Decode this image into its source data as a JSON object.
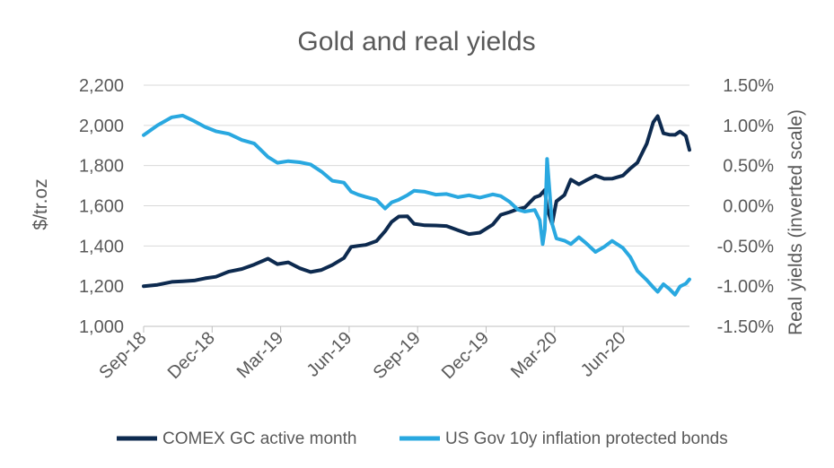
{
  "chart_data": {
    "type": "line",
    "title": "Gold and real yields",
    "ylabel": "$/tr.oz",
    "y2label": "Real yields (inverted scale)",
    "ylim": [
      1000,
      2200
    ],
    "y2lim": [
      1.5,
      -1.5
    ],
    "y2_inverted": true,
    "x_ticks": [
      "Sep-18",
      "Dec-18",
      "Mar-19",
      "Jun-19",
      "Sep-19",
      "Dec-19",
      "Mar-20",
      "Jun-20"
    ],
    "y_ticks": [
      "1,000",
      "1,200",
      "1,400",
      "1,600",
      "1,800",
      "2,000",
      "2,200"
    ],
    "y2_ticks": [
      "1.50%",
      "1.00%",
      "0.50%",
      "0.00%",
      "-0.50%",
      "-1.00%",
      "-1.50%"
    ],
    "grid": "horizontal",
    "legend_position": "bottom",
    "colors": {
      "gold": "#0d2a4f",
      "yields": "#29a8e0",
      "text": "#595959",
      "grid": "#d9d9d9"
    },
    "series": [
      {
        "name": "COMEX GC active month",
        "axis": "left",
        "x": [
          "2018-09-01",
          "2018-09-20",
          "2018-10-10",
          "2018-10-25",
          "2018-11-10",
          "2018-11-25",
          "2018-12-10",
          "2018-12-28",
          "2019-01-15",
          "2019-02-01",
          "2019-02-20",
          "2019-03-05",
          "2019-03-20",
          "2019-04-05",
          "2019-04-20",
          "2019-05-05",
          "2019-05-20",
          "2019-06-05",
          "2019-06-15",
          "2019-06-25",
          "2019-07-05",
          "2019-07-20",
          "2019-08-01",
          "2019-08-10",
          "2019-08-20",
          "2019-09-01",
          "2019-09-10",
          "2019-09-25",
          "2019-10-10",
          "2019-10-25",
          "2019-11-10",
          "2019-11-25",
          "2019-12-10",
          "2019-12-28",
          "2020-01-08",
          "2020-01-20",
          "2020-02-01",
          "2020-02-10",
          "2020-02-24",
          "2020-03-02",
          "2020-03-09",
          "2020-03-12",
          "2020-03-19",
          "2020-03-25",
          "2020-04-05",
          "2020-04-14",
          "2020-04-25",
          "2020-05-05",
          "2020-05-18",
          "2020-05-30",
          "2020-06-10",
          "2020-06-25",
          "2020-07-05",
          "2020-07-15",
          "2020-07-28",
          "2020-08-06",
          "2020-08-12",
          "2020-08-20",
          "2020-08-28",
          "2020-09-05",
          "2020-09-12",
          "2020-09-20",
          "2020-09-25"
        ],
        "values": [
          1200,
          1215,
          1230,
          1225,
          1220,
          1230,
          1245,
          1280,
          1295,
          1310,
          1330,
          1300,
          1315,
          1295,
          1280,
          1285,
          1300,
          1330,
          1390,
          1405,
          1415,
          1430,
          1470,
          1510,
          1540,
          1550,
          1520,
          1510,
          1500,
          1490,
          1470,
          1460,
          1475,
          1515,
          1555,
          1560,
          1575,
          1590,
          1650,
          1660,
          1680,
          1580,
          1500,
          1620,
          1660,
          1740,
          1710,
          1720,
          1740,
          1730,
          1740,
          1760,
          1790,
          1810,
          1900,
          2010,
          2050,
          1970,
          1960,
          1950,
          1960,
          1940,
          1880
        ]
      },
      {
        "name": "US Gov 10y inflation protected bonds",
        "axis": "right",
        "x": [
          "2018-09-01",
          "2018-09-20",
          "2018-10-10",
          "2018-10-25",
          "2018-11-10",
          "2018-11-25",
          "2018-12-10",
          "2018-12-28",
          "2019-01-15",
          "2019-02-01",
          "2019-02-20",
          "2019-03-05",
          "2019-03-20",
          "2019-04-05",
          "2019-04-20",
          "2019-05-05",
          "2019-05-20",
          "2019-06-05",
          "2019-06-15",
          "2019-06-25",
          "2019-07-05",
          "2019-07-20",
          "2019-08-01",
          "2019-08-10",
          "2019-08-20",
          "2019-09-01",
          "2019-09-10",
          "2019-09-25",
          "2019-10-10",
          "2019-10-25",
          "2019-11-10",
          "2019-11-25",
          "2019-12-10",
          "2019-12-28",
          "2020-01-08",
          "2020-01-20",
          "2020-02-01",
          "2020-02-10",
          "2020-02-24",
          "2020-03-02",
          "2020-03-06",
          "2020-03-09",
          "2020-03-12",
          "2020-03-19",
          "2020-03-25",
          "2020-04-05",
          "2020-04-14",
          "2020-04-25",
          "2020-05-05",
          "2020-05-18",
          "2020-05-30",
          "2020-06-10",
          "2020-06-25",
          "2020-07-05",
          "2020-07-15",
          "2020-07-28",
          "2020-08-06",
          "2020-08-12",
          "2020-08-20",
          "2020-08-28",
          "2020-09-05",
          "2020-09-12",
          "2020-09-20",
          "2020-09-25"
        ],
        "values": [
          0.9,
          1.0,
          1.08,
          1.1,
          1.05,
          1.0,
          0.95,
          0.9,
          0.8,
          0.75,
          0.6,
          0.55,
          0.58,
          0.55,
          0.5,
          0.4,
          0.3,
          0.3,
          0.2,
          0.15,
          0.1,
          0.05,
          -0.05,
          0.05,
          0.1,
          0.15,
          0.18,
          0.15,
          0.12,
          0.15,
          0.13,
          0.15,
          0.1,
          0.12,
          0.1,
          0.05,
          -0.03,
          -0.05,
          -0.05,
          -0.2,
          -0.5,
          -0.3,
          0.6,
          -0.2,
          -0.4,
          -0.45,
          -0.5,
          -0.4,
          -0.45,
          -0.55,
          -0.5,
          -0.45,
          -0.55,
          -0.65,
          -0.8,
          -0.9,
          -1.0,
          -1.08,
          -1.0,
          -1.05,
          -1.1,
          -0.98,
          -0.95,
          -0.92
        ]
      }
    ]
  }
}
